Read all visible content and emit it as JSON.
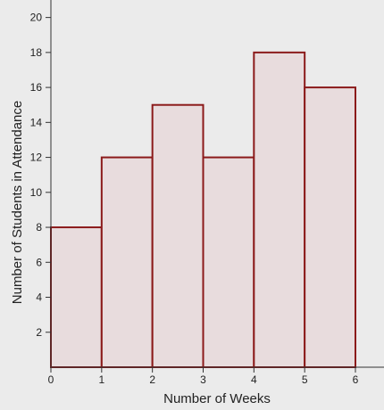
{
  "chart_data": {
    "type": "bar",
    "subtype": "histogram",
    "title": "",
    "xlabel": "Number of Weeks",
    "ylabel": "Number of Students in Attendance",
    "bins": [
      {
        "x0": 0,
        "x1": 1,
        "value": 8
      },
      {
        "x0": 1,
        "x1": 2,
        "value": 12
      },
      {
        "x0": 2,
        "x1": 3,
        "value": 15
      },
      {
        "x0": 3,
        "x1": 4,
        "value": 12
      },
      {
        "x0": 4,
        "x1": 5,
        "value": 18
      },
      {
        "x0": 5,
        "x1": 6,
        "value": 16
      }
    ],
    "xlim": [
      0,
      6
    ],
    "ylim": [
      0,
      21
    ],
    "xticks": [
      0,
      1,
      2,
      3,
      4,
      5,
      6
    ],
    "yticks": [
      2,
      4,
      6,
      8,
      10,
      12,
      14,
      16,
      18,
      20
    ],
    "grid": false,
    "legend": "none",
    "colors": {
      "background": "#ebebeb",
      "bar_fill": "#e8dcdd",
      "bar_stroke": "#8b1a1a",
      "axis": "#333333"
    }
  }
}
